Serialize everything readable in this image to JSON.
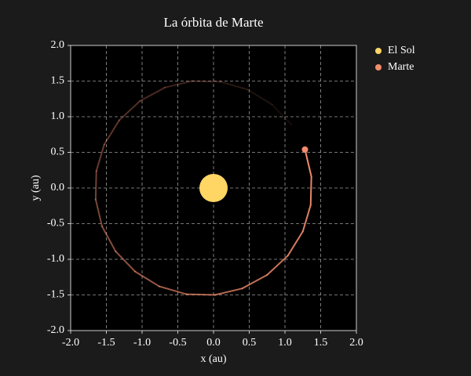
{
  "chart_data": {
    "type": "orbit",
    "title": "La órbita de Marte",
    "x_label": "x (au)",
    "y_label": "y (au)",
    "xlim": [
      -2,
      2
    ],
    "ylim": [
      -2,
      2
    ],
    "xticks": [
      {
        "value": -2,
        "label": "-2.0"
      },
      {
        "value": -1.5,
        "label": "-1.5"
      },
      {
        "value": -1,
        "label": "-1.0"
      },
      {
        "value": -0.5,
        "label": "-0.5"
      },
      {
        "value": 0,
        "label": "0.0"
      },
      {
        "value": 0.5,
        "label": "0.5"
      },
      {
        "value": 1,
        "label": "1.0"
      },
      {
        "value": 1.5,
        "label": "1.5"
      },
      {
        "value": 2,
        "label": "2.0"
      }
    ],
    "yticks": [
      {
        "value": -2,
        "label": "-2.0"
      },
      {
        "value": -1.5,
        "label": "-1.5"
      },
      {
        "value": -1,
        "label": "-1.0"
      },
      {
        "value": -0.5,
        "label": "-0.5"
      },
      {
        "value": 0,
        "label": "0.0"
      },
      {
        "value": 0.5,
        "label": "0.5"
      },
      {
        "value": 1,
        "label": "1.0"
      },
      {
        "value": 1.5,
        "label": "1.5"
      },
      {
        "value": 2,
        "label": "2.0"
      }
    ],
    "grid": true,
    "legend": "outside-right",
    "series": [
      {
        "name": "El Sol",
        "color": "#ffd563",
        "x": [
          0
        ],
        "y": [
          0
        ]
      },
      {
        "name": "Marte",
        "color": "#f28c6c",
        "x": [
          1.09,
          0.82,
          0.48,
          0.1,
          -0.3,
          -0.68,
          -1.03,
          -1.32,
          -1.53,
          -1.64,
          -1.65,
          -1.56,
          -1.37,
          -1.1,
          -0.76,
          -0.38,
          0.02,
          0.4,
          0.75,
          1.04,
          1.25,
          1.36,
          1.37,
          1.28
        ],
        "y": [
          0.89,
          1.17,
          1.38,
          1.49,
          1.5,
          1.41,
          1.22,
          0.95,
          0.61,
          0.24,
          -0.16,
          -0.54,
          -0.89,
          -1.17,
          -1.38,
          -1.49,
          -1.5,
          -1.41,
          -1.22,
          -0.95,
          -0.61,
          -0.24,
          0.16,
          0.54
        ]
      }
    ]
  }
}
